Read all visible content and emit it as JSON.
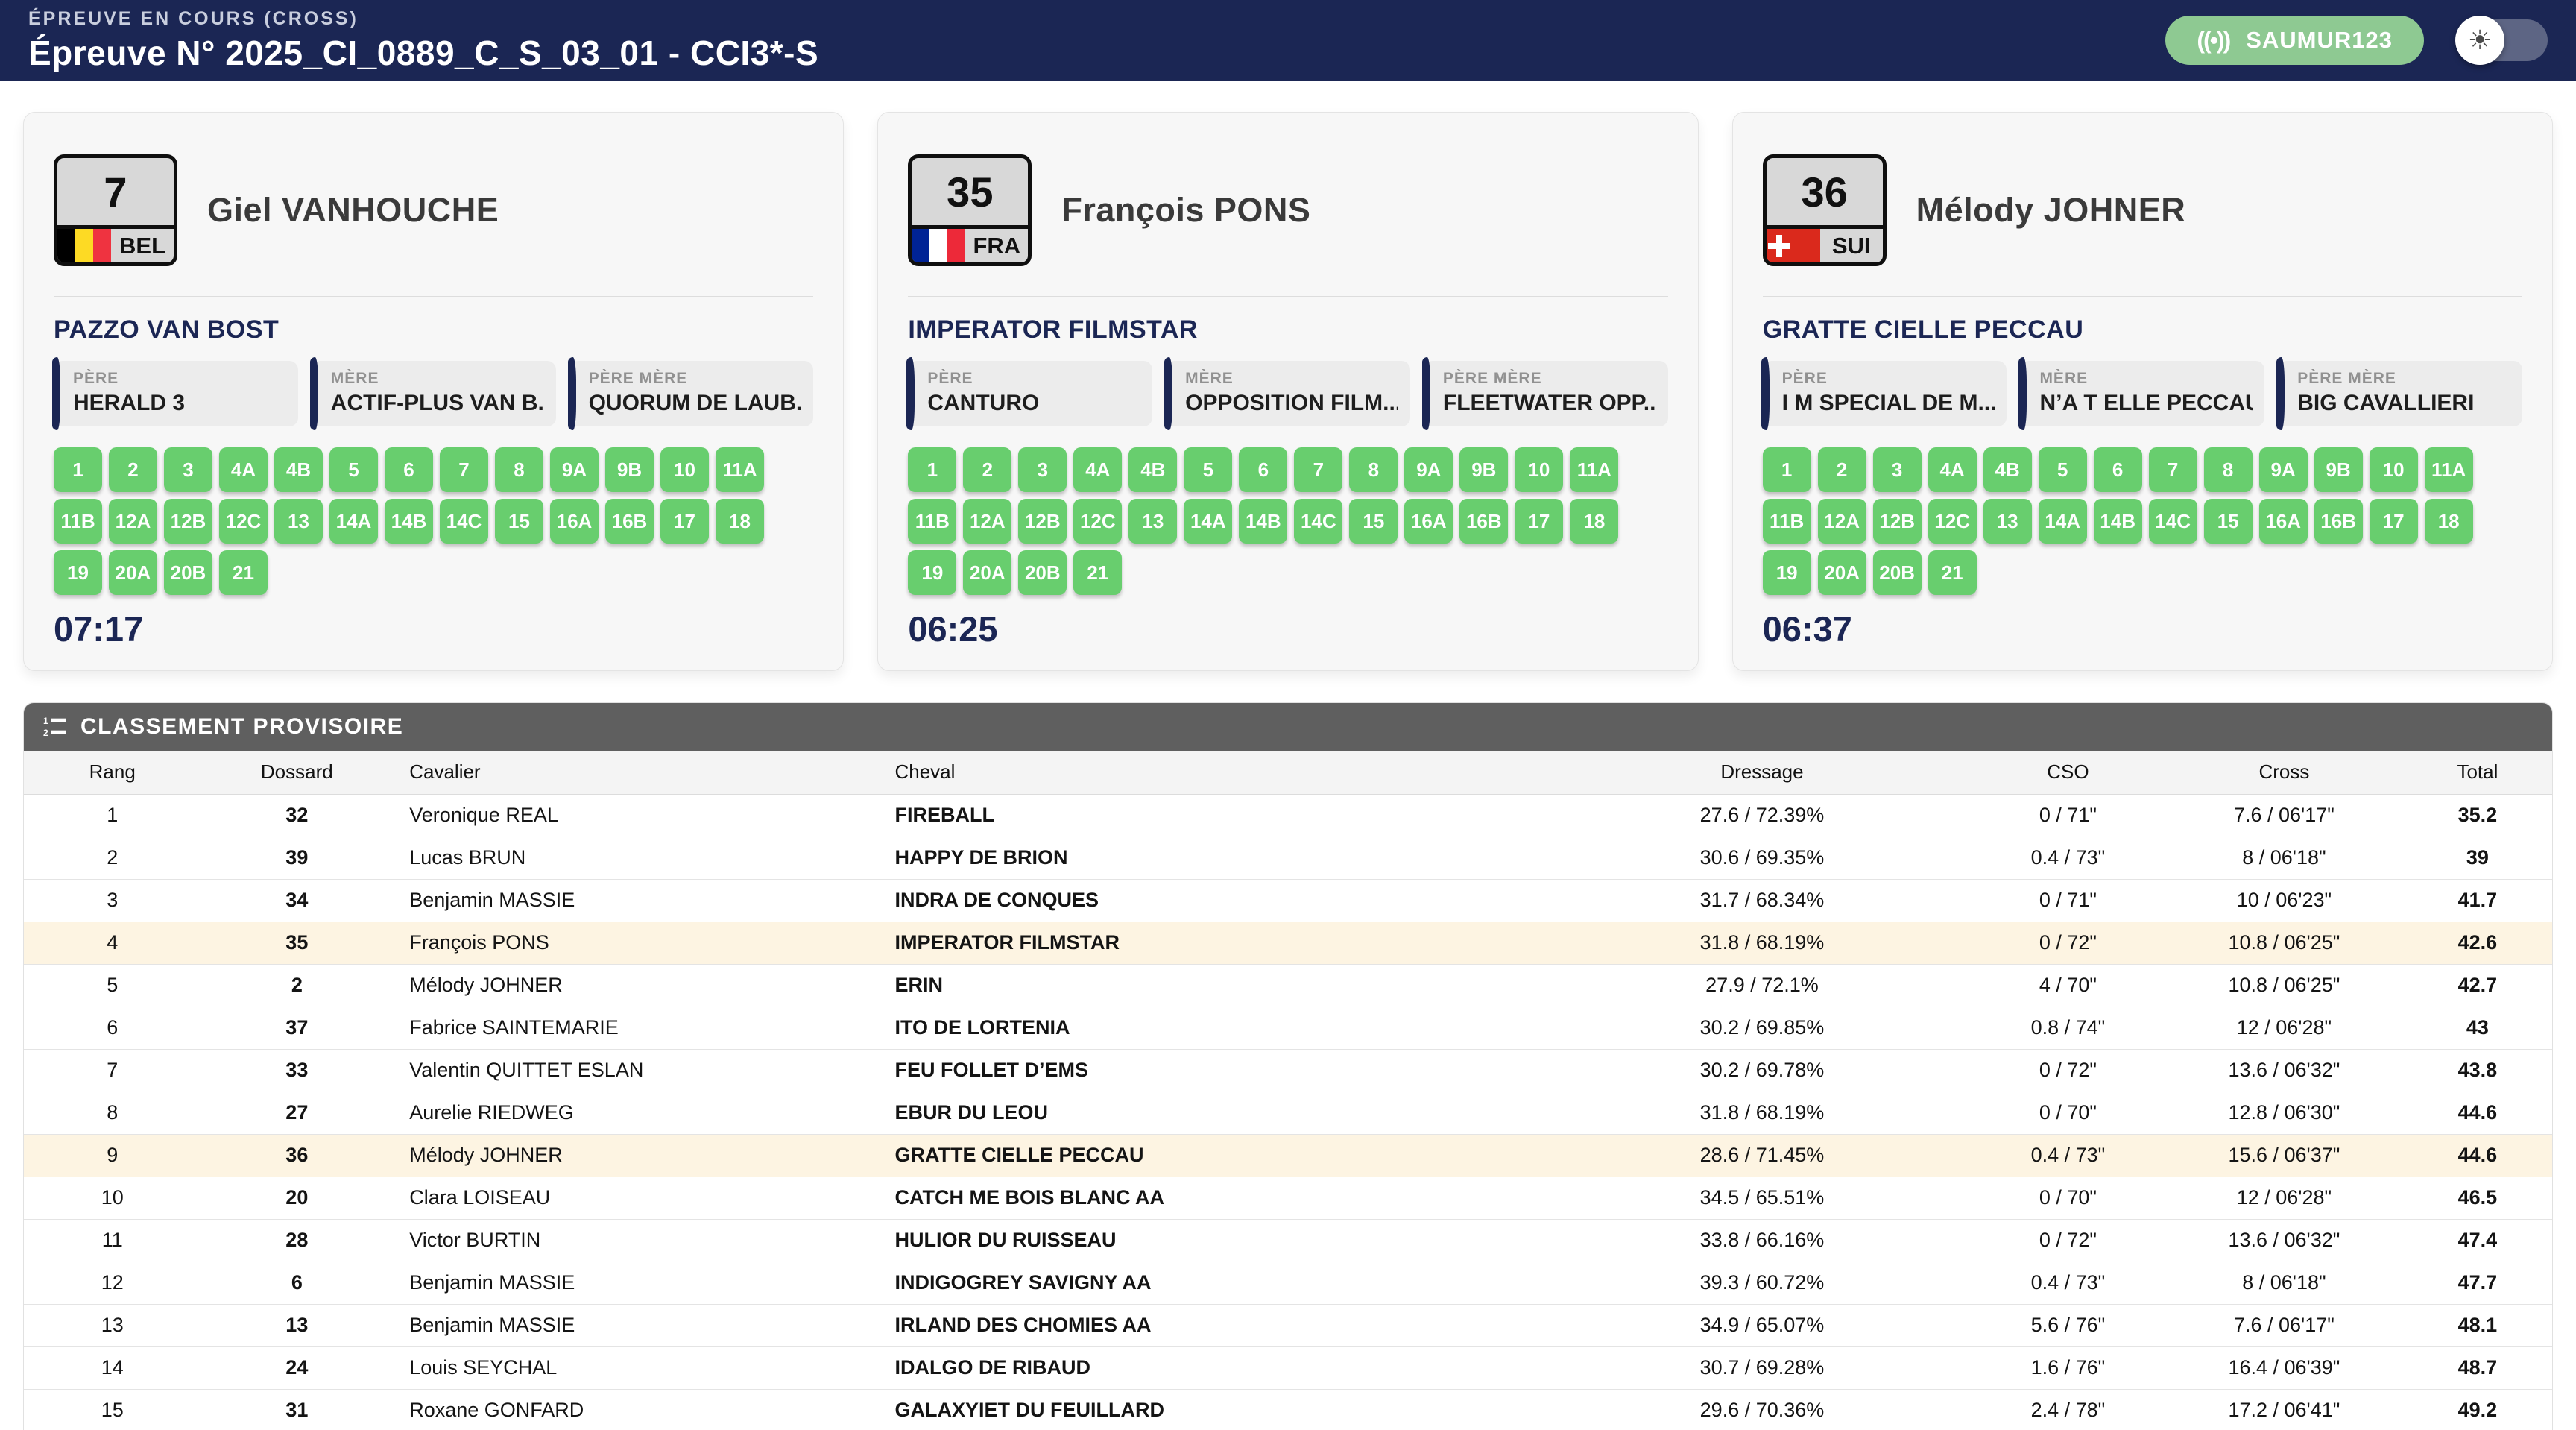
{
  "colors": {
    "navy": "#1b2654",
    "badge_green": "#8ec992",
    "fence_green": "#68ce6e",
    "highlight_row": "#fdf4e2",
    "ranking_bar_gray": "#5f5f5f"
  },
  "header": {
    "event_label": "ÉPREUVE EN COURS (CROSS)",
    "event_title": "Épreuve N° 2025_CI_0889_C_S_03_01 - CCI3*-S",
    "badge_label": "SAUMUR123",
    "badge_icon": "broadcast-icon",
    "toggle_icon": "sun-icon"
  },
  "competitors": [
    {
      "number": "7",
      "country": "BEL",
      "flag": {
        "type": "vertical",
        "colors": [
          "#000000",
          "#FDDA24",
          "#EF3340"
        ]
      },
      "rider": "Giel VANHOUCHE",
      "horse": "PAZZO VAN BOST",
      "pedigree": [
        {
          "label": "PÈRE",
          "value": "HERALD 3"
        },
        {
          "label": "MÈRE",
          "value": "ACTIF-PLUS VAN B..."
        },
        {
          "label": "PÈRE MÈRE",
          "value": "QUORUM DE LAUB..."
        }
      ],
      "fences": [
        "1",
        "2",
        "3",
        "4A",
        "4B",
        "5",
        "6",
        "7",
        "8",
        "9A",
        "9B",
        "10",
        "11A",
        "11B",
        "12A",
        "12B",
        "12C",
        "13",
        "14A",
        "14B",
        "14C",
        "15",
        "16A",
        "16B",
        "17",
        "18",
        "19",
        "20A",
        "20B",
        "21"
      ],
      "time": "07:17"
    },
    {
      "number": "35",
      "country": "FRA",
      "flag": {
        "type": "vertical",
        "colors": [
          "#002395",
          "#FFFFFF",
          "#ED2939"
        ]
      },
      "rider": "François PONS",
      "horse": "IMPERATOR FILMSTAR",
      "pedigree": [
        {
          "label": "PÈRE",
          "value": "CANTURO"
        },
        {
          "label": "MÈRE",
          "value": "OPPOSITION FILM..."
        },
        {
          "label": "PÈRE MÈRE",
          "value": "FLEETWATER OPP..."
        }
      ],
      "fences": [
        "1",
        "2",
        "3",
        "4A",
        "4B",
        "5",
        "6",
        "7",
        "8",
        "9A",
        "9B",
        "10",
        "11A",
        "11B",
        "12A",
        "12B",
        "12C",
        "13",
        "14A",
        "14B",
        "14C",
        "15",
        "16A",
        "16B",
        "17",
        "18",
        "19",
        "20A",
        "20B",
        "21"
      ],
      "time": "06:25"
    },
    {
      "number": "36",
      "country": "SUI",
      "flag": {
        "type": "cross",
        "bg": "#DA291C",
        "cross": "#FFFFFF"
      },
      "rider": "Mélody JOHNER",
      "horse": "GRATTE CIELLE PECCAU",
      "pedigree": [
        {
          "label": "PÈRE",
          "value": "I M SPECIAL DE M..."
        },
        {
          "label": "MÈRE",
          "value": "N’A T ELLE PECCAU"
        },
        {
          "label": "PÈRE MÈRE",
          "value": "BIG CAVALLIERI"
        }
      ],
      "fences": [
        "1",
        "2",
        "3",
        "4A",
        "4B",
        "5",
        "6",
        "7",
        "8",
        "9A",
        "9B",
        "10",
        "11A",
        "11B",
        "12A",
        "12B",
        "12C",
        "13",
        "14A",
        "14B",
        "14C",
        "15",
        "16A",
        "16B",
        "17",
        "18",
        "19",
        "20A",
        "20B",
        "21"
      ],
      "time": "06:37"
    }
  ],
  "ranking": {
    "title": "CLASSEMENT PROVISOIRE",
    "icon": "ordered-list-icon",
    "columns": [
      "Rang",
      "Dossard",
      "Cavalier",
      "Cheval",
      "Dressage",
      "CSO",
      "Cross",
      "Total"
    ],
    "rows": [
      {
        "rang": "1",
        "dossard": "32",
        "cavalier": "Veronique REAL",
        "cheval": "FIREBALL",
        "dressage": "27.6 / 72.39%",
        "cso": "0 / 71\"",
        "cross": "7.6 / 06'17\"",
        "total": "35.2",
        "highlight": false
      },
      {
        "rang": "2",
        "dossard": "39",
        "cavalier": "Lucas BRUN",
        "cheval": "HAPPY DE BRION",
        "dressage": "30.6 / 69.35%",
        "cso": "0.4 / 73\"",
        "cross": "8 / 06'18\"",
        "total": "39",
        "highlight": false
      },
      {
        "rang": "3",
        "dossard": "34",
        "cavalier": "Benjamin MASSIE",
        "cheval": "INDRA DE CONQUES",
        "dressage": "31.7 / 68.34%",
        "cso": "0 / 71\"",
        "cross": "10 / 06'23\"",
        "total": "41.7",
        "highlight": false
      },
      {
        "rang": "4",
        "dossard": "35",
        "cavalier": "François PONS",
        "cheval": "IMPERATOR FILMSTAR",
        "dressage": "31.8 / 68.19%",
        "cso": "0 / 72\"",
        "cross": "10.8 / 06'25\"",
        "total": "42.6",
        "highlight": true
      },
      {
        "rang": "5",
        "dossard": "2",
        "cavalier": "Mélody JOHNER",
        "cheval": "ERIN",
        "dressage": "27.9 / 72.1%",
        "cso": "4 / 70\"",
        "cross": "10.8 / 06'25\"",
        "total": "42.7",
        "highlight": false
      },
      {
        "rang": "6",
        "dossard": "37",
        "cavalier": "Fabrice SAINTEMARIE",
        "cheval": "ITO DE LORTENIA",
        "dressage": "30.2 / 69.85%",
        "cso": "0.8 / 74\"",
        "cross": "12 / 06'28\"",
        "total": "43",
        "highlight": false
      },
      {
        "rang": "7",
        "dossard": "33",
        "cavalier": "Valentin QUITTET ESLAN",
        "cheval": "FEU FOLLET D’EMS",
        "dressage": "30.2 / 69.78%",
        "cso": "0 / 72\"",
        "cross": "13.6 / 06'32\"",
        "total": "43.8",
        "highlight": false
      },
      {
        "rang": "8",
        "dossard": "27",
        "cavalier": "Aurelie RIEDWEG",
        "cheval": "EBUR DU LEOU",
        "dressage": "31.8 / 68.19%",
        "cso": "0 / 70\"",
        "cross": "12.8 / 06'30\"",
        "total": "44.6",
        "highlight": false
      },
      {
        "rang": "9",
        "dossard": "36",
        "cavalier": "Mélody JOHNER",
        "cheval": "GRATTE CIELLE PECCAU",
        "dressage": "28.6 / 71.45%",
        "cso": "0.4 / 73\"",
        "cross": "15.6 / 06'37\"",
        "total": "44.6",
        "highlight": true
      },
      {
        "rang": "10",
        "dossard": "20",
        "cavalier": "Clara LOISEAU",
        "cheval": "CATCH ME BOIS BLANC AA",
        "dressage": "34.5 / 65.51%",
        "cso": "0 / 70\"",
        "cross": "12 / 06'28\"",
        "total": "46.5",
        "highlight": false
      },
      {
        "rang": "11",
        "dossard": "28",
        "cavalier": "Victor BURTIN",
        "cheval": "HULIOR DU RUISSEAU",
        "dressage": "33.8 / 66.16%",
        "cso": "0 / 72\"",
        "cross": "13.6 / 06'32\"",
        "total": "47.4",
        "highlight": false
      },
      {
        "rang": "12",
        "dossard": "6",
        "cavalier": "Benjamin MASSIE",
        "cheval": "INDIGOGREY SAVIGNY AA",
        "dressage": "39.3 / 60.72%",
        "cso": "0.4 / 73\"",
        "cross": "8 / 06'18\"",
        "total": "47.7",
        "highlight": false
      },
      {
        "rang": "13",
        "dossard": "13",
        "cavalier": "Benjamin MASSIE",
        "cheval": "IRLAND DES CHOMIES AA",
        "dressage": "34.9 / 65.07%",
        "cso": "5.6 / 76\"",
        "cross": "7.6 / 06'17\"",
        "total": "48.1",
        "highlight": false
      },
      {
        "rang": "14",
        "dossard": "24",
        "cavalier": "Louis SEYCHAL",
        "cheval": "IDALGO DE RIBAUD",
        "dressage": "30.7 / 69.28%",
        "cso": "1.6 / 76\"",
        "cross": "16.4 / 06'39\"",
        "total": "48.7",
        "highlight": false
      },
      {
        "rang": "15",
        "dossard": "31",
        "cavalier": "Roxane GONFARD",
        "cheval": "GALAXYIET DU FEUILLARD",
        "dressage": "29.6 / 70.36%",
        "cso": "2.4 / 78\"",
        "cross": "17.2 / 06'41\"",
        "total": "49.2",
        "highlight": false
      }
    ]
  }
}
